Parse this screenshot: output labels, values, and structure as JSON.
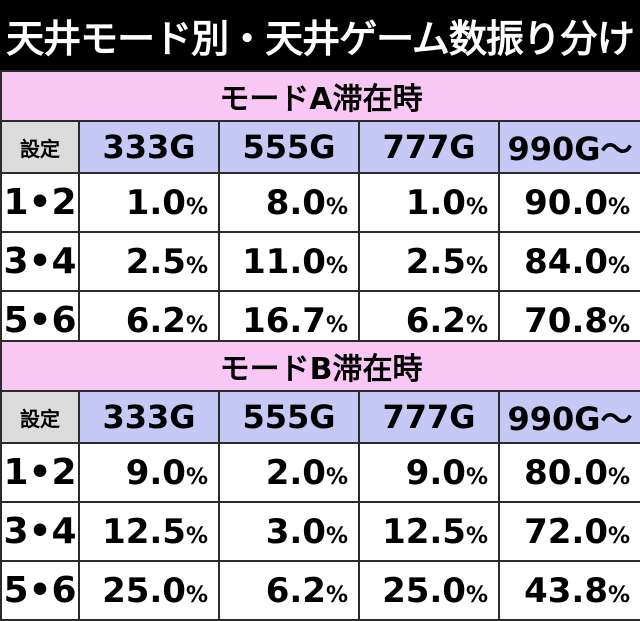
{
  "title": "天井モード別・天井ゲーム数振り分け",
  "tables": [
    {
      "mode_label": "モードA滞在時",
      "corner_label": "設定",
      "columns": [
        "333G",
        "555G",
        "777G",
        "990G〜"
      ],
      "rows": [
        {
          "setting": "1•2",
          "values": [
            "1.0",
            "8.0",
            "1.0",
            "90.0"
          ]
        },
        {
          "setting": "3•4",
          "values": [
            "2.5",
            "11.0",
            "2.5",
            "84.0"
          ]
        },
        {
          "setting": "5•6",
          "values": [
            "6.2",
            "16.7",
            "6.2",
            "70.8"
          ]
        }
      ]
    },
    {
      "mode_label": "モードB滞在時",
      "corner_label": "設定",
      "columns": [
        "333G",
        "555G",
        "777G",
        "990G〜"
      ],
      "rows": [
        {
          "setting": "1•2",
          "values": [
            "9.0",
            "2.0",
            "9.0",
            "80.0"
          ]
        },
        {
          "setting": "3•4",
          "values": [
            "12.5",
            "3.0",
            "12.5",
            "72.0"
          ]
        },
        {
          "setting": "5•6",
          "values": [
            "25.0",
            "6.2",
            "25.0",
            "43.8"
          ]
        }
      ]
    }
  ],
  "unit": "%",
  "colors": {
    "title_bg": "#000000",
    "mode_header_bg": "#f8c7f3",
    "column_header_bg": "#c6c8f6",
    "corner_bg": "#dcdcdc"
  }
}
